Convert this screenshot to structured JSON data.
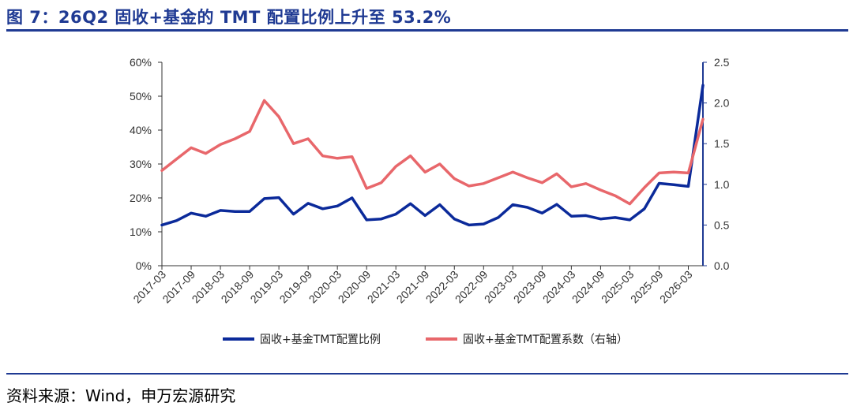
{
  "title": "图 7：26Q2 固收+基金的 TMT 配置比例上升至 53.2%",
  "source": "资料来源：Wind，申万宏源研究",
  "colors": {
    "accent": "#1f3a93",
    "series1": "#0b2a9a",
    "series2": "#e8676b"
  },
  "chart_data": {
    "type": "line",
    "x": [
      "2017-03",
      "2017-06",
      "2017-09",
      "2017-12",
      "2018-03",
      "2018-06",
      "2018-09",
      "2018-12",
      "2019-03",
      "2019-06",
      "2019-09",
      "2019-12",
      "2020-03",
      "2020-06",
      "2020-09",
      "2020-12",
      "2021-03",
      "2021-06",
      "2021-09",
      "2021-12",
      "2022-03",
      "2022-06",
      "2022-09",
      "2022-12",
      "2023-03",
      "2023-06",
      "2023-09",
      "2023-12",
      "2024-03",
      "2024-06",
      "2024-09",
      "2024-12",
      "2025-03",
      "2025-06",
      "2025-09",
      "2025-12",
      "2026-03",
      "2026-06"
    ],
    "x_tick_labels": [
      "2017-03",
      "2017-09",
      "2018-03",
      "2018-09",
      "2019-03",
      "2019-09",
      "2020-03",
      "2020-09",
      "2021-03",
      "2021-09",
      "2022-03",
      "2022-09",
      "2023-03",
      "2023-09",
      "2024-03",
      "2024-09",
      "2025-03",
      "2025-09",
      "2026-03"
    ],
    "series": [
      {
        "name": "固收+基金TMT配置比例",
        "axis": "left",
        "values": [
          12.0,
          13.3,
          15.5,
          14.6,
          16.3,
          16.0,
          16.0,
          19.8,
          20.1,
          15.2,
          18.4,
          16.8,
          17.6,
          20.0,
          13.5,
          13.8,
          15.2,
          18.3,
          14.8,
          18.0,
          13.8,
          12.0,
          12.3,
          14.2,
          18.0,
          17.2,
          15.5,
          18.1,
          14.6,
          14.8,
          13.8,
          14.2,
          13.5,
          16.8,
          24.3,
          23.9,
          23.4,
          53.2
        ]
      },
      {
        "name": "固收+基金TMT配置系数（右轴）",
        "axis": "right",
        "values": [
          1.17,
          1.31,
          1.45,
          1.38,
          1.49,
          1.56,
          1.65,
          2.03,
          1.83,
          1.5,
          1.56,
          1.35,
          1.32,
          1.34,
          0.95,
          1.02,
          1.22,
          1.35,
          1.15,
          1.25,
          1.07,
          0.98,
          1.01,
          1.08,
          1.15,
          1.08,
          1.02,
          1.13,
          0.97,
          1.01,
          0.93,
          0.86,
          0.76,
          0.96,
          1.14,
          1.15,
          1.14,
          1.8
        ]
      }
    ],
    "y_left": {
      "ticks": [
        "0%",
        "10%",
        "20%",
        "30%",
        "40%",
        "50%",
        "60%"
      ],
      "lim": [
        0,
        60
      ]
    },
    "y_right": {
      "ticks": [
        "0.0",
        "0.5",
        "1.0",
        "1.5",
        "2.0",
        "2.5"
      ],
      "lim": [
        0,
        2.5
      ]
    },
    "grid": false,
    "legend_position": "bottom"
  }
}
